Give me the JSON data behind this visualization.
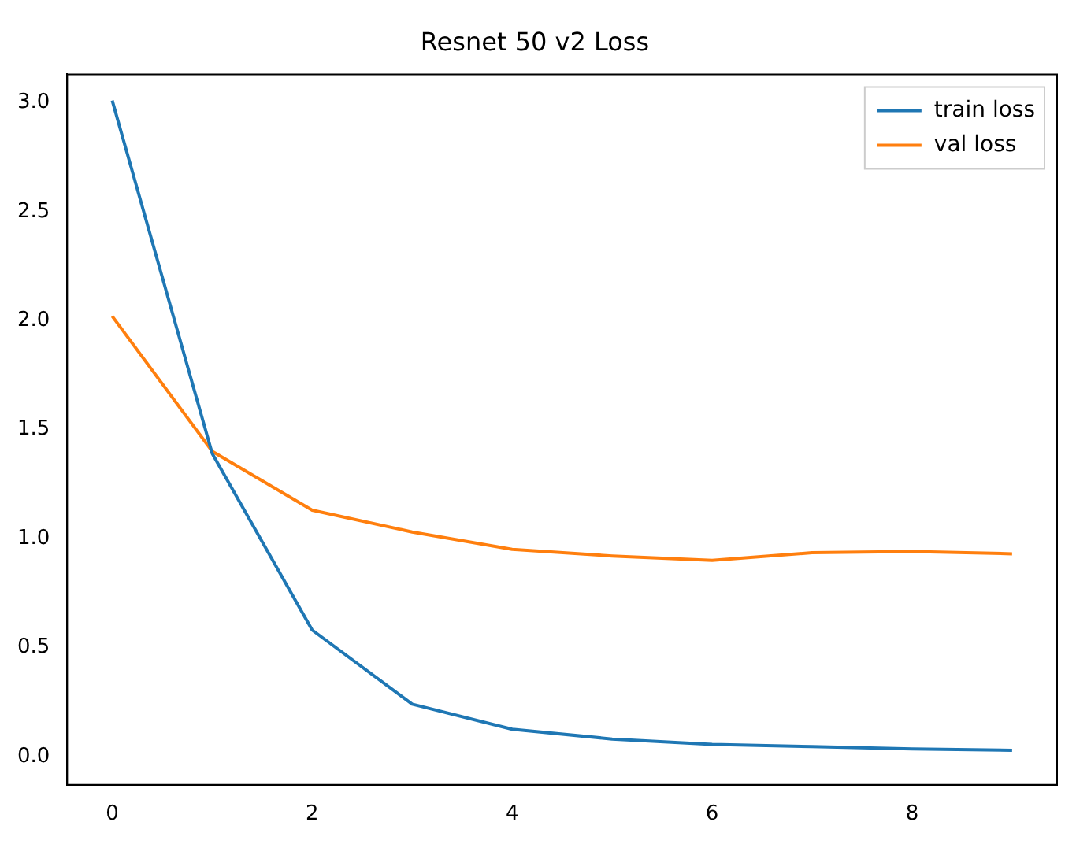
{
  "chart_data": {
    "type": "line",
    "title": "Resnet 50 v2 Loss",
    "x": [
      0,
      1,
      2,
      3,
      4,
      5,
      6,
      7,
      8,
      9
    ],
    "series": [
      {
        "name": "train loss",
        "color": "#1f77b4",
        "values": [
          3.01,
          1.39,
          0.58,
          0.24,
          0.125,
          0.08,
          0.055,
          0.045,
          0.035,
          0.028
        ]
      },
      {
        "name": "val loss",
        "color": "#ff7f0e",
        "values": [
          2.02,
          1.4,
          1.13,
          1.03,
          0.95,
          0.92,
          0.9,
          0.935,
          0.94,
          0.93
        ]
      }
    ],
    "xlim": [
      -0.45,
      9.45
    ],
    "xticks": [
      0,
      2,
      4,
      6,
      8
    ],
    "ylim": [
      -0.13,
      3.13
    ],
    "yticks": [
      {
        "value": 0,
        "label": "0.0"
      },
      0.5,
      {
        "value": 1,
        "label": "1.0"
      },
      1.5,
      {
        "value": 2,
        "label": "2.0"
      },
      2.5,
      {
        "value": 3,
        "label": "3.0"
      }
    ],
    "grid": false,
    "legend": "top right",
    "marker": "none",
    "line_style": "solid"
  }
}
